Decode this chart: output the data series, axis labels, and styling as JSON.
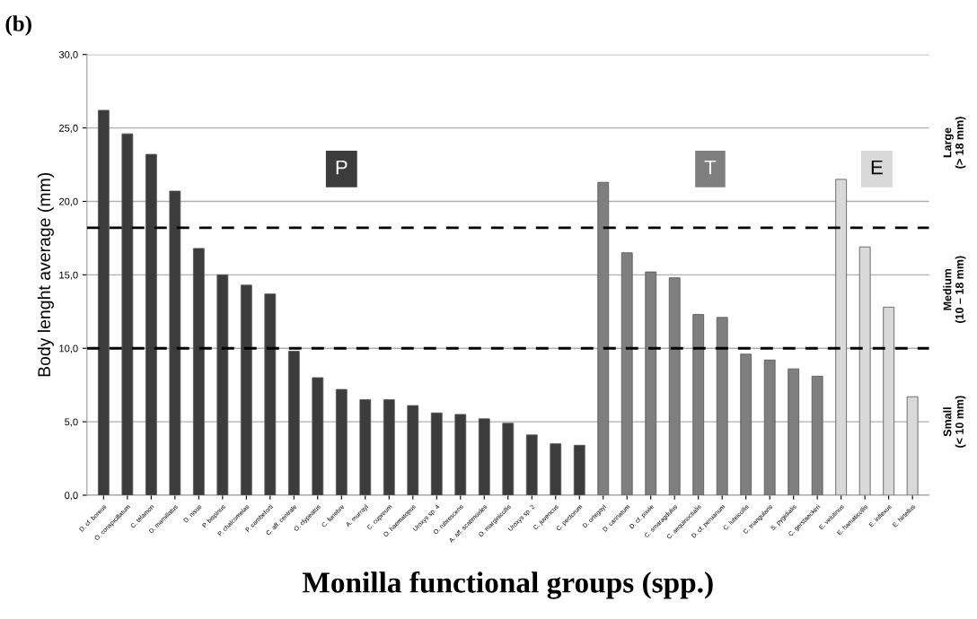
{
  "chart_data": {
    "type": "bar",
    "ylabel": "Body lenght average (mm)",
    "xlabel": "Monilla functional groups (spp.)",
    "categories": [
      "D. cf. boreus",
      "O. conspicillatum",
      "C. telamon",
      "D. mamillatus",
      "D. nisus",
      "P. bispinus",
      "P. chalcomelas",
      "P. cambeforti",
      "C. aff. centrale",
      "O. clypeatus",
      "C. funebre",
      "A. murrayi",
      "C. cupreum",
      "O. haematopus",
      "Uroxys sp. 4",
      "O. rubrescens",
      "A. aff. scatimoides",
      "O. marginicollis",
      "Uroxys sp. 2",
      "C. juvencus",
      "C. pectorum",
      "D. ortegayi",
      "D. carinatum",
      "D. cf. pavie",
      "C. smaragdulus",
      "C. aequinoctialis",
      "D. cf. peruanum",
      "C. luteicollis",
      "C. triangularis",
      "S. pygidialis",
      "C. gerstaeckeri",
      "E. velutinus",
      "E. hamaticollis",
      "E. inflexus",
      "E. hirtellus"
    ],
    "series": [
      {
        "name": "P",
        "color": "#3c3c3c",
        "values": [
          26.2,
          24.6,
          23.2,
          20.7,
          16.8,
          15.0,
          14.3,
          13.7,
          9.8,
          8.0,
          7.2,
          6.5,
          6.5,
          6.1,
          5.6,
          5.5,
          5.2,
          4.9,
          4.1,
          3.5,
          3.4,
          null,
          null,
          null,
          null,
          null,
          null,
          null,
          null,
          null,
          null,
          null,
          null,
          null,
          null
        ]
      },
      {
        "name": "T",
        "color": "#7f7f7f",
        "values": [
          null,
          null,
          null,
          null,
          null,
          null,
          null,
          null,
          null,
          null,
          null,
          null,
          null,
          null,
          null,
          null,
          null,
          null,
          null,
          null,
          null,
          21.3,
          16.5,
          15.2,
          14.8,
          12.3,
          12.1,
          9.6,
          9.2,
          8.6,
          8.1,
          null,
          null,
          null,
          null
        ]
      },
      {
        "name": "E",
        "color": "#d9d9d9",
        "values": [
          null,
          null,
          null,
          null,
          null,
          null,
          null,
          null,
          null,
          null,
          null,
          null,
          null,
          null,
          null,
          null,
          null,
          null,
          null,
          null,
          null,
          null,
          null,
          null,
          null,
          null,
          null,
          null,
          null,
          null,
          null,
          21.5,
          16.9,
          12.8,
          6.7
        ]
      }
    ],
    "ylim": [
      0,
      30
    ],
    "yticks": [
      {
        "value": 0,
        "label": "0,0"
      },
      {
        "value": 5,
        "label": "5,0"
      },
      {
        "value": 10,
        "label": "10,0"
      },
      {
        "value": 15,
        "label": "15,0"
      },
      {
        "value": 20,
        "label": "20,0"
      },
      {
        "value": 25,
        "label": "25,0"
      },
      {
        "value": 30,
        "label": "30,0"
      }
    ],
    "grid": "y",
    "legend": false,
    "ref_lines": [
      {
        "axis": "y",
        "value": 18.2,
        "color": "#000000",
        "line_style": "dashed"
      },
      {
        "axis": "y",
        "value": 10.0,
        "color": "#000000",
        "line_style": "dashed"
      }
    ],
    "annotations": [
      "(b)",
      "Large\n(> 18 mm)",
      "Medium\n(10 – 18 mm)",
      "Small\n(< 10 mm)"
    ]
  }
}
